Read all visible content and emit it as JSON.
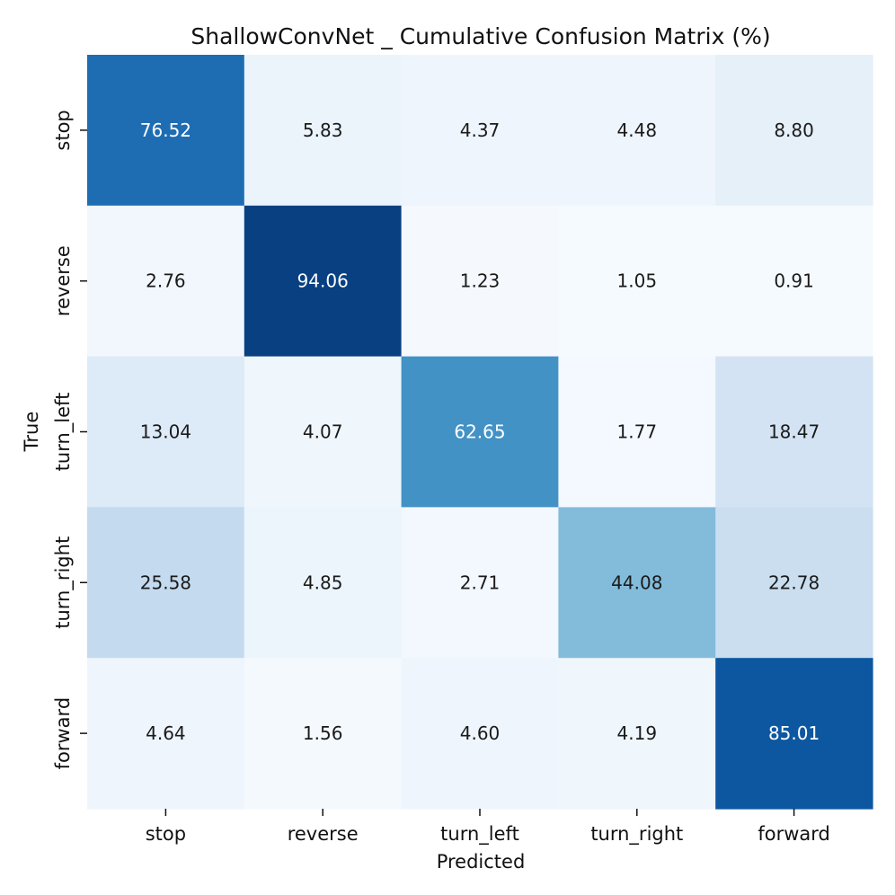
{
  "chart_data": {
    "type": "heatmap",
    "title": "ShallowConvNet _ Cumulative Confusion Matrix (%)",
    "xlabel": "Predicted",
    "ylabel": "True",
    "x_categories": [
      "stop",
      "reverse",
      "turn_left",
      "turn_right",
      "forward"
    ],
    "y_categories": [
      "stop",
      "reverse",
      "turn_left",
      "turn_right",
      "forward"
    ],
    "values": [
      [
        76.52,
        5.83,
        4.37,
        4.48,
        8.8
      ],
      [
        2.76,
        94.06,
        1.23,
        1.05,
        0.91
      ],
      [
        13.04,
        4.07,
        62.65,
        1.77,
        18.47
      ],
      [
        25.58,
        4.85,
        2.71,
        44.08,
        22.78
      ],
      [
        4.64,
        1.56,
        4.6,
        4.19,
        85.01
      ]
    ],
    "value_format": "2 decimals",
    "colormap": "Blues",
    "value_range": [
      0,
      100
    ],
    "colorbar": false
  },
  "colors": {
    "colormap_stops": [
      "#f7fbff",
      "#deebf7",
      "#c6dbef",
      "#9ecae1",
      "#6baed6",
      "#4292c6",
      "#2171b5",
      "#08519c",
      "#08306b"
    ],
    "dark_text": "#1a1a1a",
    "light_text": "#ffffff"
  }
}
